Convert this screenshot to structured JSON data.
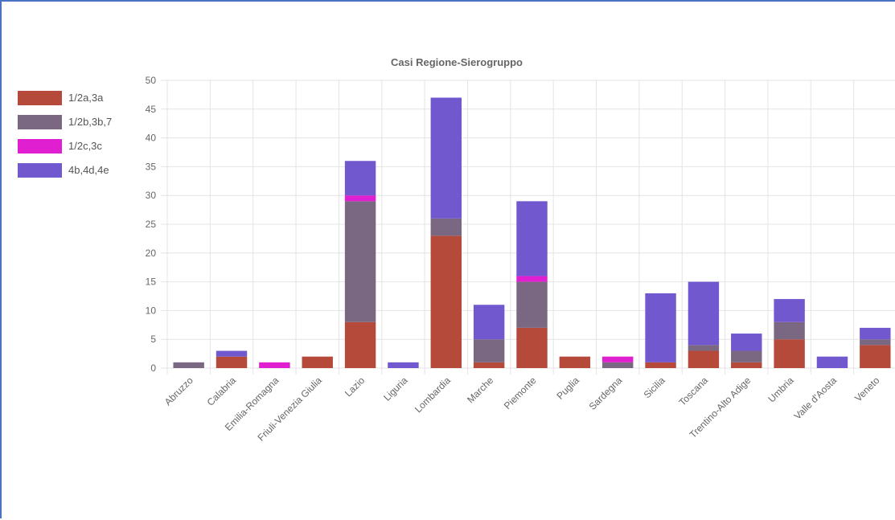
{
  "chart_data": {
    "type": "bar",
    "stacked": true,
    "title": "Casi Regione-Sierogruppo",
    "xlabel": "",
    "ylabel": "",
    "ylim": [
      0,
      50
    ],
    "yticks": [
      0,
      5,
      10,
      15,
      20,
      25,
      30,
      35,
      40,
      45,
      50
    ],
    "grid": true,
    "legend_position": "left",
    "categories": [
      "Abruzzo",
      "Calabria",
      "Emilia-Romagna",
      "Friuli-Venezia Giulia",
      "Lazio",
      "Liguria",
      "Lombardia",
      "Marche",
      "Piemonte",
      "Puglia",
      "Sardegna",
      "Sicilia",
      "Toscana",
      "Trentino-Alto Adige",
      "Umbria",
      "Valle d'Aosta",
      "Veneto"
    ],
    "series": [
      {
        "name": "1/2a,3a",
        "color": "#b5493a",
        "values": [
          0,
          2,
          0,
          2,
          8,
          0,
          23,
          1,
          7,
          2,
          0,
          1,
          3,
          1,
          5,
          0,
          4
        ]
      },
      {
        "name": "1/2b,3b,7",
        "color": "#7a6882",
        "values": [
          1,
          0,
          0,
          0,
          21,
          0,
          3,
          4,
          8,
          0,
          1,
          0,
          1,
          2,
          3,
          0,
          1
        ]
      },
      {
        "name": "1/2c,3c",
        "color": "#e01fd0",
        "values": [
          0,
          0,
          1,
          0,
          1,
          0,
          0,
          0,
          1,
          0,
          1,
          0,
          0,
          0,
          0,
          0,
          0
        ]
      },
      {
        "name": "4b,4d,4e",
        "color": "#7158cf",
        "values": [
          0,
          1,
          0,
          0,
          6,
          1,
          21,
          6,
          13,
          0,
          0,
          12,
          11,
          3,
          4,
          2,
          2
        ]
      }
    ]
  },
  "colors": {
    "frame_border": "#4a73c4",
    "grid": "#e4e4e4",
    "text": "#666666"
  }
}
